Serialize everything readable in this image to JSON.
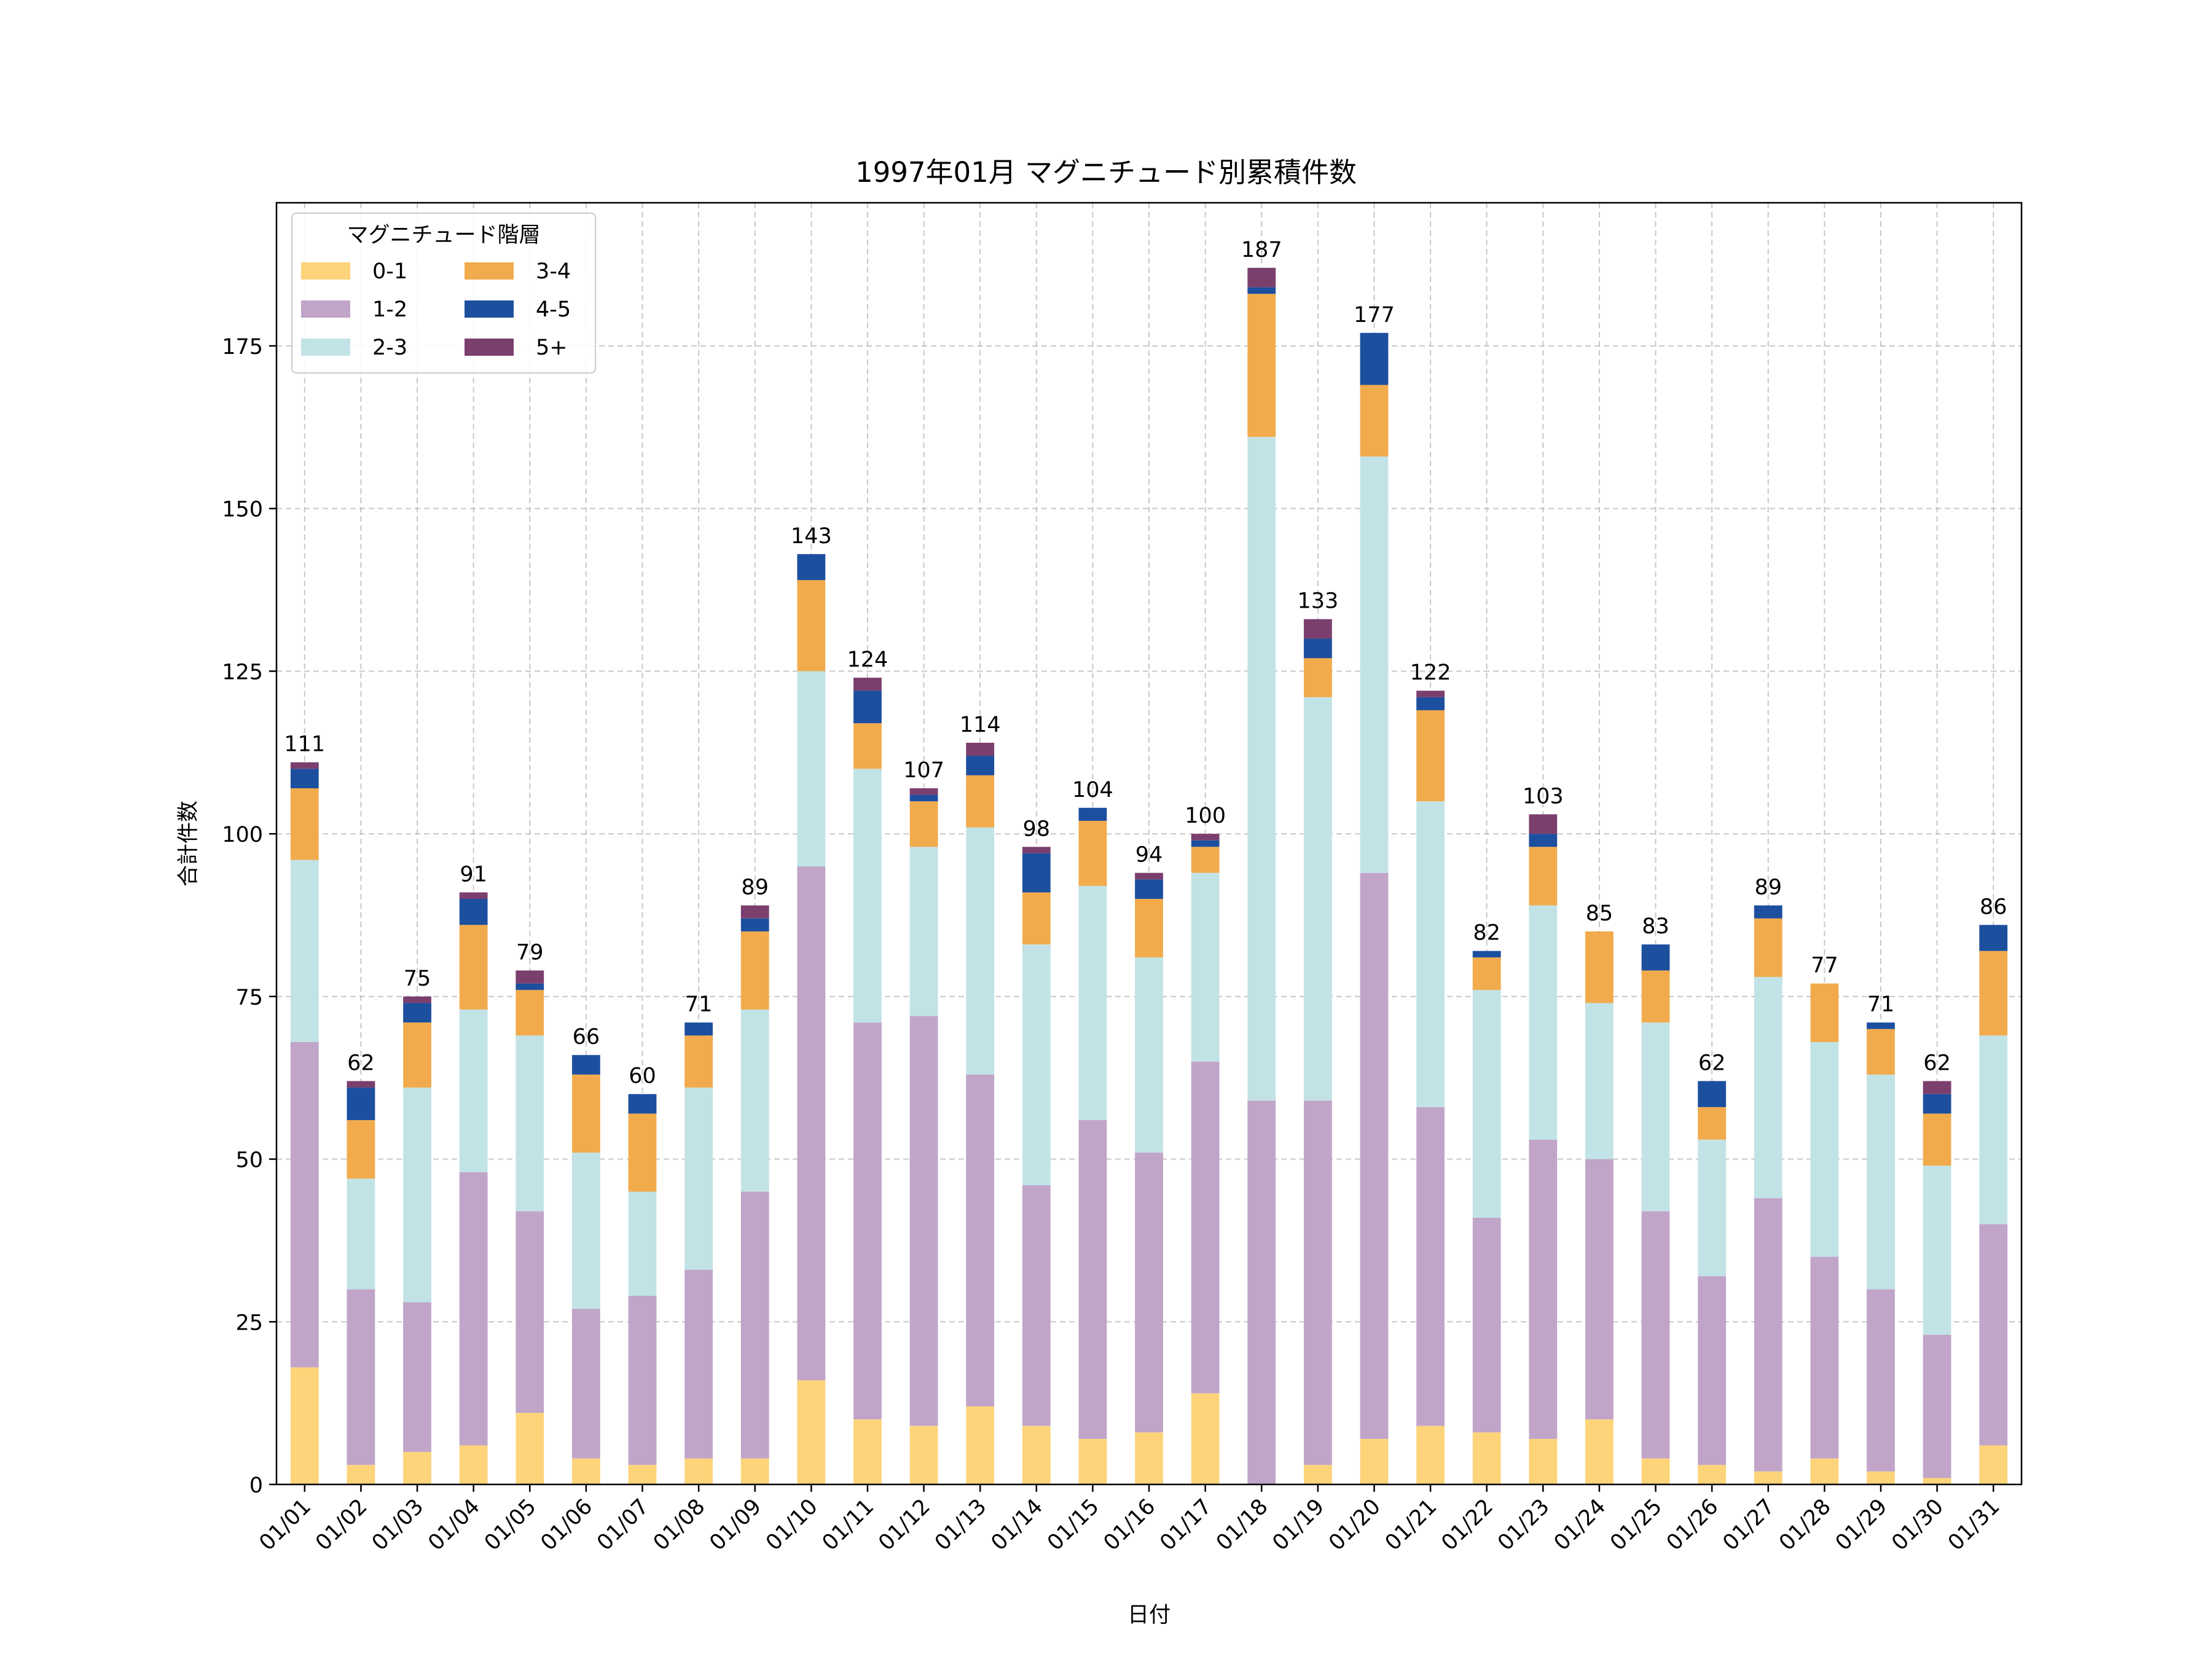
{
  "chart_data": {
    "type": "bar",
    "stacked": true,
    "title": "1997年01月 マグニチュード別累積件数",
    "xlabel": "日付",
    "ylabel": "合計件数",
    "ylim": [
      0,
      197
    ],
    "yticks": [
      0,
      25,
      50,
      75,
      100,
      125,
      150,
      175
    ],
    "grid": true,
    "legend": {
      "title": "マグニチュード階層",
      "position": "top-left",
      "columns": 2
    },
    "categories": [
      "01/01",
      "01/02",
      "01/03",
      "01/04",
      "01/05",
      "01/06",
      "01/07",
      "01/08",
      "01/09",
      "01/10",
      "01/11",
      "01/12",
      "01/13",
      "01/14",
      "01/15",
      "01/16",
      "01/17",
      "01/18",
      "01/19",
      "01/20",
      "01/21",
      "01/22",
      "01/23",
      "01/24",
      "01/25",
      "01/26",
      "01/27",
      "01/28",
      "01/29",
      "01/30",
      "01/31"
    ],
    "series": [
      {
        "name": "0-1",
        "color": "#fdd47a",
        "values": [
          18,
          3,
          5,
          6,
          11,
          4,
          3,
          4,
          4,
          16,
          10,
          9,
          12,
          9,
          7,
          8,
          14,
          0,
          3,
          7,
          9,
          8,
          7,
          10,
          4,
          3,
          2,
          4,
          2,
          1,
          6
        ]
      },
      {
        "name": "1-2",
        "color": "#c0a5c9",
        "values": [
          50,
          27,
          23,
          42,
          31,
          23,
          26,
          29,
          41,
          79,
          61,
          63,
          51,
          37,
          49,
          43,
          51,
          59,
          56,
          87,
          49,
          33,
          46,
          40,
          38,
          29,
          42,
          31,
          28,
          22,
          34
        ]
      },
      {
        "name": "2-3",
        "color": "#c2e3e6",
        "values": [
          28,
          17,
          33,
          25,
          27,
          24,
          16,
          28,
          28,
          30,
          39,
          26,
          38,
          37,
          36,
          30,
          29,
          102,
          62,
          64,
          47,
          35,
          36,
          24,
          29,
          21,
          34,
          33,
          33,
          26,
          29
        ]
      },
      {
        "name": "3-4",
        "color": "#f2ab4c",
        "values": [
          11,
          9,
          10,
          13,
          7,
          12,
          12,
          8,
          12,
          14,
          7,
          7,
          8,
          8,
          10,
          9,
          4,
          22,
          6,
          11,
          14,
          5,
          9,
          11,
          8,
          5,
          9,
          9,
          7,
          8,
          13
        ]
      },
      {
        "name": "4-5",
        "color": "#1d4f9f",
        "values": [
          3,
          5,
          3,
          4,
          1,
          3,
          3,
          2,
          2,
          4,
          5,
          1,
          3,
          6,
          2,
          3,
          1,
          1,
          3,
          8,
          2,
          1,
          2,
          0,
          4,
          4,
          2,
          0,
          1,
          3,
          4
        ]
      },
      {
        "name": "5+",
        "color": "#7b3f6e",
        "values": [
          1,
          1,
          1,
          1,
          2,
          0,
          0,
          0,
          2,
          0,
          2,
          1,
          2,
          1,
          0,
          1,
          1,
          3,
          3,
          0,
          1,
          0,
          3,
          0,
          0,
          0,
          0,
          0,
          0,
          2,
          0
        ]
      }
    ],
    "totals": [
      111,
      62,
      75,
      91,
      79,
      66,
      60,
      71,
      89,
      143,
      124,
      107,
      114,
      98,
      104,
      94,
      100,
      187,
      133,
      177,
      122,
      82,
      103,
      85,
      83,
      62,
      89,
      77,
      71,
      62,
      86
    ]
  }
}
